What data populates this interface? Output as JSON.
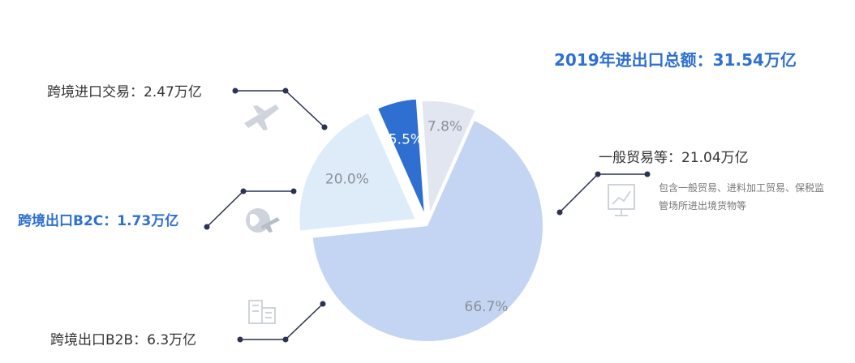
{
  "colors": {
    "accent": "#2e6fd1",
    "leader": "#2b3253",
    "icon": "#cfd4dc"
  },
  "icons": [
    "airplane-icon",
    "globe-plane-icon",
    "buildings-icon",
    "chart-monitor-icon"
  ],
  "header": {
    "total_label": "2019年进出口总额：31.54万亿"
  },
  "note": {
    "text": "包含一般贸易、进料加工贸易、保税监管场所进出境货物等"
  },
  "chart_data": {
    "type": "pie",
    "title": "2019年进出口总额：31.54万亿",
    "slices": [
      {
        "label": "一般贸易等：21.04万亿",
        "value": 66.7,
        "pct_label": "66.7%",
        "color": "#c3d5f2",
        "text_color": "#8a8f99",
        "exploded": false,
        "highlight": false
      },
      {
        "label": "跨境出口B2B：6.3万亿",
        "value": 20.0,
        "pct_label": "20.0%",
        "color": "#deecf9",
        "text_color": "#8a8f99",
        "exploded": true,
        "highlight": false
      },
      {
        "label": "跨境出口B2C：1.73万亿",
        "value": 5.5,
        "pct_label": "5.5%",
        "color": "#2e6fd1",
        "text_color": "#ffffff",
        "exploded": true,
        "highlight": true
      },
      {
        "label": "跨境进口交易：2.47万亿",
        "value": 7.8,
        "pct_label": "7.8%",
        "color": "#e2e6f1",
        "text_color": "#8a8f99",
        "exploded": true,
        "highlight": false
      }
    ]
  }
}
